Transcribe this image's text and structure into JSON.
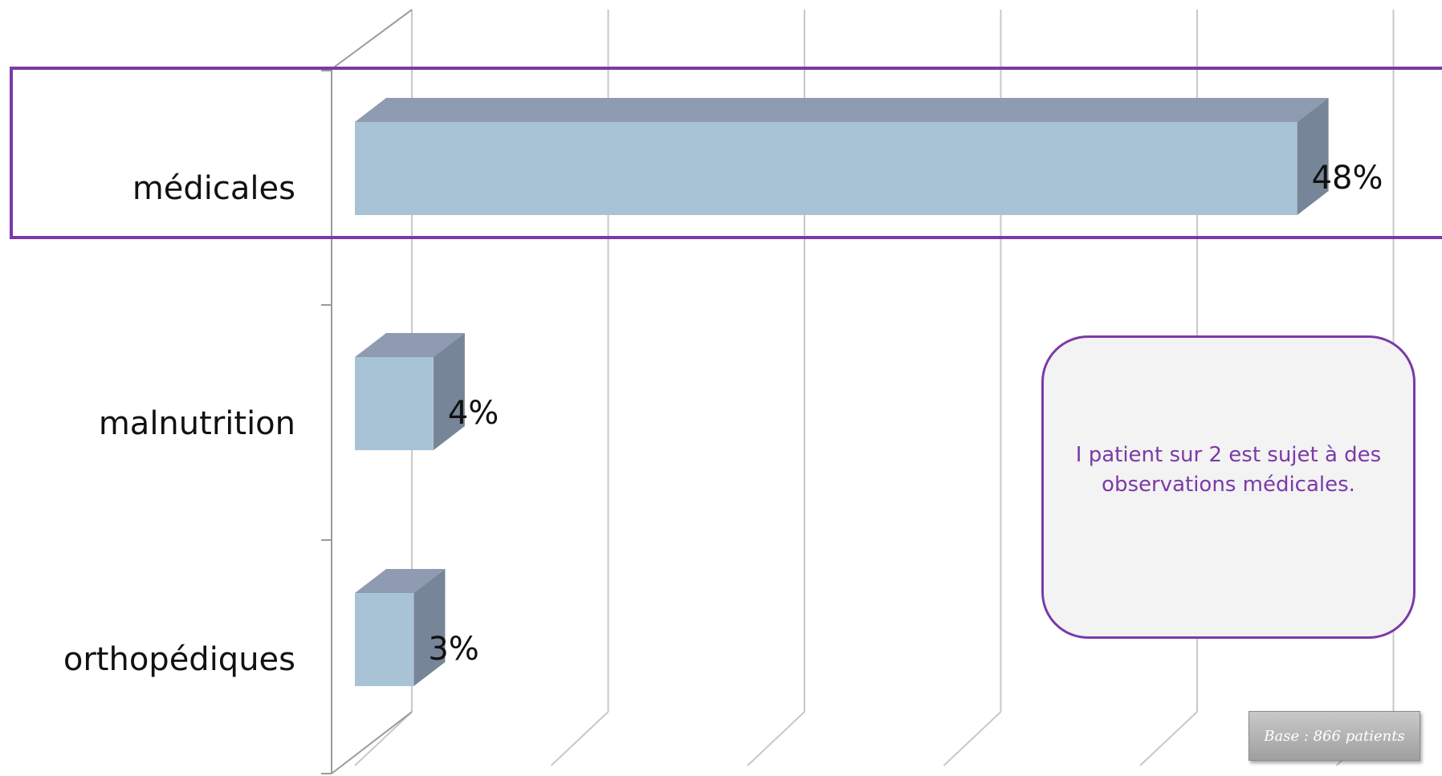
{
  "chart_data": {
    "type": "bar",
    "orientation": "horizontal",
    "style": "3d",
    "categories": [
      "médicales",
      "malnutrition",
      "orthopédiques"
    ],
    "values": [
      48,
      4,
      3
    ],
    "value_labels": [
      "48%",
      "4%",
      "3%"
    ],
    "xlim": [
      0,
      50
    ],
    "grid": true,
    "highlighted_category": "médicales",
    "colors": {
      "bar_front": "#a9c3d6",
      "bar_top": "#8e9bb0",
      "bar_side": "#768597",
      "grid": "#c8c8c8",
      "highlight": "#7b3aa8"
    }
  },
  "callout": {
    "text": "I patient sur 2 est sujet à des observations médicales."
  },
  "base_note": "Base : 866 patients"
}
